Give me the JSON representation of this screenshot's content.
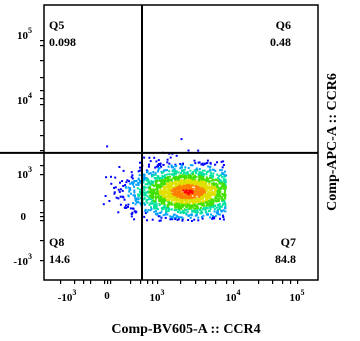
{
  "chart_data": {
    "type": "density-scatter",
    "xlabel": "Comp-BV605-A :: CCR4",
    "ylabel": "Comp-APC-A :: CCR6",
    "x_ticks": [
      {
        "base": "-10",
        "exp": "3"
      },
      {
        "base": "0",
        "exp": ""
      },
      {
        "base": "10",
        "exp": "3"
      },
      {
        "base": "10",
        "exp": "4"
      },
      {
        "base": "10",
        "exp": "5"
      }
    ],
    "y_ticks": [
      {
        "base": "10",
        "exp": "5"
      },
      {
        "base": "10",
        "exp": "4"
      },
      {
        "base": "10",
        "exp": "3"
      },
      {
        "base": "0",
        "exp": ""
      },
      {
        "base": "-10",
        "exp": "3"
      }
    ],
    "quadrants": [
      {
        "name": "Q5",
        "value": "0.098",
        "position": "top-left"
      },
      {
        "name": "Q6",
        "value": "0.48",
        "position": "top-right"
      },
      {
        "name": "Q8",
        "value": "14.6",
        "position": "bottom-left"
      },
      {
        "name": "Q7",
        "value": "84.8",
        "position": "bottom-right"
      }
    ],
    "gate": {
      "x": 700,
      "y": 2000
    },
    "population": {
      "center": {
        "x": 2500,
        "y": 600
      },
      "color_scale": [
        "#0000ff",
        "#00a0ff",
        "#00e0a0",
        "#40e000",
        "#e0e000",
        "#ff8000",
        "#ff0000"
      ]
    }
  }
}
